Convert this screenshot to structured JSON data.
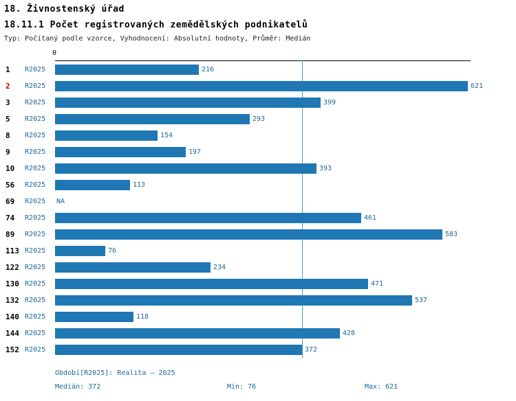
{
  "title": "18. Živnostenský úřad",
  "subtitle": "18.11.1 Počet registrovaných zemědělských podnikatelů",
  "meta_line": "Typ: Počítaný podle vzorce, Vyhodnocení: Absolutní hodnoty, Průměr: Medián",
  "colors": {
    "bar": "#1f77b4",
    "label_blue": "#1b6698",
    "highlight_red": "#cc0000",
    "median_line": "#4e98b8"
  },
  "chart_data": {
    "type": "bar",
    "orientation": "horizontal",
    "title": "18.11.1 Počet registrovaných zemědělských podnikatelů",
    "series_label": "R2025",
    "categories": [
      "1",
      "2",
      "3",
      "5",
      "8",
      "9",
      "10",
      "56",
      "69",
      "74",
      "89",
      "113",
      "122",
      "130",
      "132",
      "140",
      "144",
      "152"
    ],
    "values": [
      216,
      621,
      399,
      293,
      154,
      197,
      393,
      113,
      null,
      461,
      583,
      76,
      234,
      471,
      537,
      118,
      428,
      372
    ],
    "na_label": "NA",
    "xlim": [
      0,
      621
    ],
    "axis_zero_label": "0",
    "median_line_value": 372,
    "highlighted_category": "2",
    "legend_position": "none",
    "grid": false
  },
  "footer": {
    "period": "Období[R2025]: Realita – 2025",
    "median": "Medián: 372",
    "min": "Min: 76",
    "max": "Max: 621"
  }
}
